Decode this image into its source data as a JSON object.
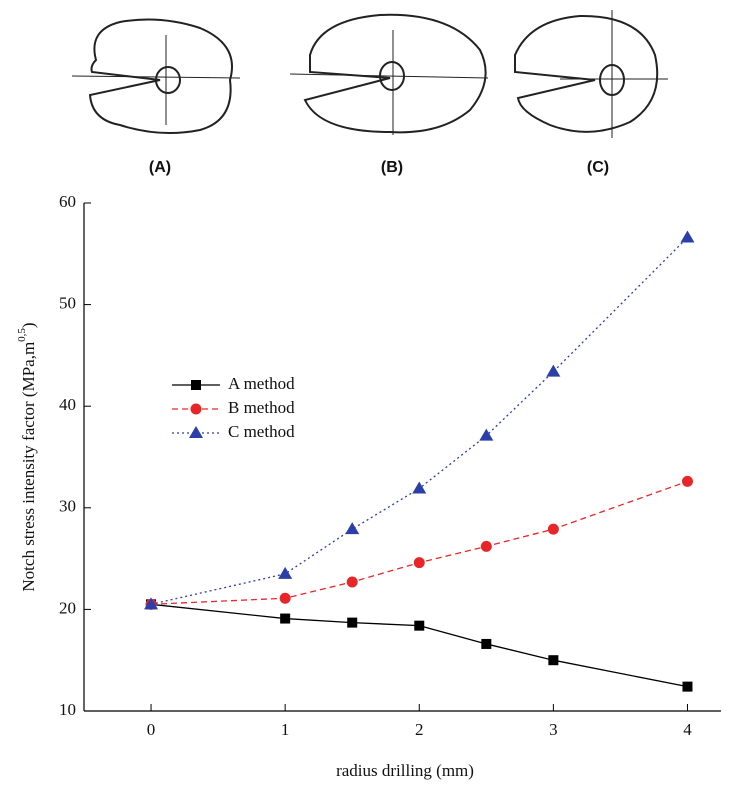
{
  "panel_labels": [
    "(A)",
    "(B)",
    "(C)"
  ],
  "chart_data": {
    "type": "line",
    "xlabel": "radius drilling (mm)",
    "ylabel": "Notch stress intensity factor (MPa,m",
    "ylabel_sup": "0,5",
    "ylabel_end": ")",
    "x": [
      0,
      1,
      1.5,
      2,
      2.5,
      3,
      4
    ],
    "series": [
      {
        "name": "A method",
        "color": "#000000",
        "line_style": "solid",
        "marker": "square",
        "values": [
          20.5,
          19.1,
          18.7,
          18.4,
          16.6,
          15.0,
          12.4
        ]
      },
      {
        "name": "B method",
        "color": "#e8262a",
        "line_style": "dashed",
        "marker": "circle",
        "values": [
          20.5,
          21.1,
          22.7,
          24.6,
          26.2,
          27.9,
          32.6
        ]
      },
      {
        "name": "C method",
        "color": "#2c3fa8",
        "line_style": "dotted",
        "marker": "triangle",
        "values": [
          20.5,
          23.5,
          27.9,
          31.9,
          37.1,
          43.4,
          56.6
        ]
      }
    ],
    "xlim": [
      -0.5,
      4.25
    ],
    "xticks": [
      0,
      1,
      2,
      3,
      4
    ],
    "ylim": [
      10,
      60
    ],
    "yticks": [
      10,
      20,
      30,
      40,
      50,
      60
    ]
  }
}
